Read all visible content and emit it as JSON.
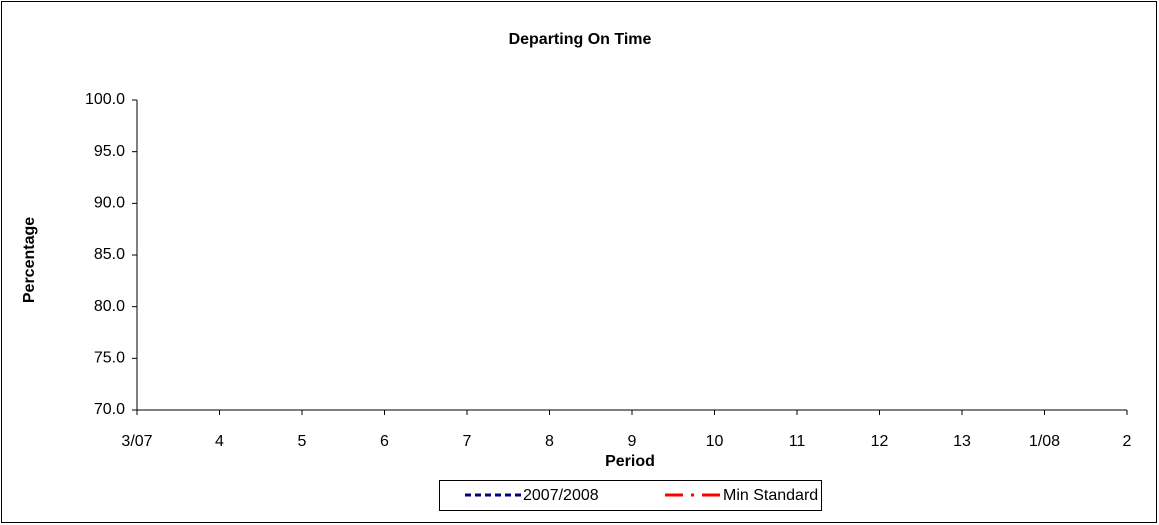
{
  "chart_data": {
    "type": "line",
    "title": "Departing On Time",
    "xlabel": "Period",
    "ylabel": "Percentage",
    "categories": [
      "3/07",
      "4",
      "5",
      "6",
      "7",
      "8",
      "9",
      "10",
      "11",
      "12",
      "13",
      "1/08",
      "2"
    ],
    "series": [
      {
        "name": "2007/2008",
        "color": "#000080",
        "dash": "dashed",
        "values": [
          null,
          null,
          null,
          null,
          null,
          null,
          null,
          null,
          null,
          null,
          null,
          null,
          null
        ]
      },
      {
        "name": "Min Standard",
        "color": "#ff0000",
        "dash": "dash-dot",
        "values": [
          null,
          null,
          null,
          null,
          null,
          null,
          null,
          null,
          null,
          null,
          null,
          null,
          null
        ]
      }
    ],
    "ylim": [
      70,
      100
    ],
    "yticks": [
      {
        "value": 70,
        "label": "70.0"
      },
      {
        "value": 75,
        "label": "75.0"
      },
      {
        "value": 80,
        "label": "80.0"
      },
      {
        "value": 85,
        "label": "85.0"
      },
      {
        "value": 90,
        "label": "90.0"
      },
      {
        "value": 95,
        "label": "95.0"
      },
      {
        "value": 100,
        "label": "100.0"
      }
    ],
    "grid": false,
    "legend": "bottom"
  }
}
